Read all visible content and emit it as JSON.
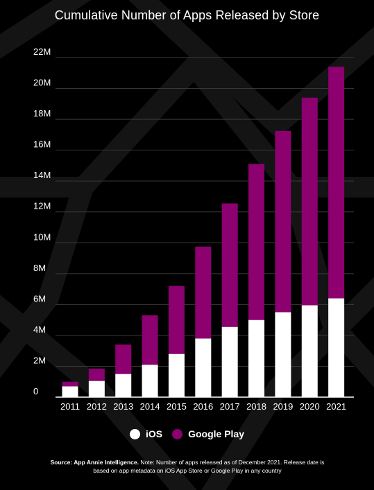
{
  "chart_data": {
    "type": "bar",
    "stacked": true,
    "title": "Cumulative Number of Apps Released by Store",
    "categories": [
      "2011",
      "2012",
      "2013",
      "2014",
      "2015",
      "2016",
      "2017",
      "2018",
      "2019",
      "2020",
      "2021"
    ],
    "series": [
      {
        "name": "iOS",
        "color": "#ffffff",
        "values": [
          0.7,
          1.05,
          1.5,
          2.1,
          2.8,
          3.8,
          4.55,
          5.0,
          5.5,
          5.95,
          6.4
        ]
      },
      {
        "name": "Google Play",
        "color": "#8c0070",
        "values": [
          0.3,
          0.8,
          1.9,
          3.2,
          4.4,
          5.95,
          8.0,
          10.1,
          11.75,
          13.45,
          15.0
        ]
      }
    ],
    "y_ticks": [
      "0",
      "2M",
      "4M",
      "6M",
      "8M",
      "10M",
      "12M",
      "14M",
      "16M",
      "18M",
      "20M",
      "22M"
    ],
    "ylim": [
      0,
      22
    ],
    "y_unit": "M",
    "grid": true,
    "legend_position": "bottom"
  },
  "source": {
    "label": "Source: App Annie Intelligence.",
    "text": "Note: Number of apps released as of December 2021. Release date is based on app metadata on iOS App Store or Google Play in any country"
  }
}
